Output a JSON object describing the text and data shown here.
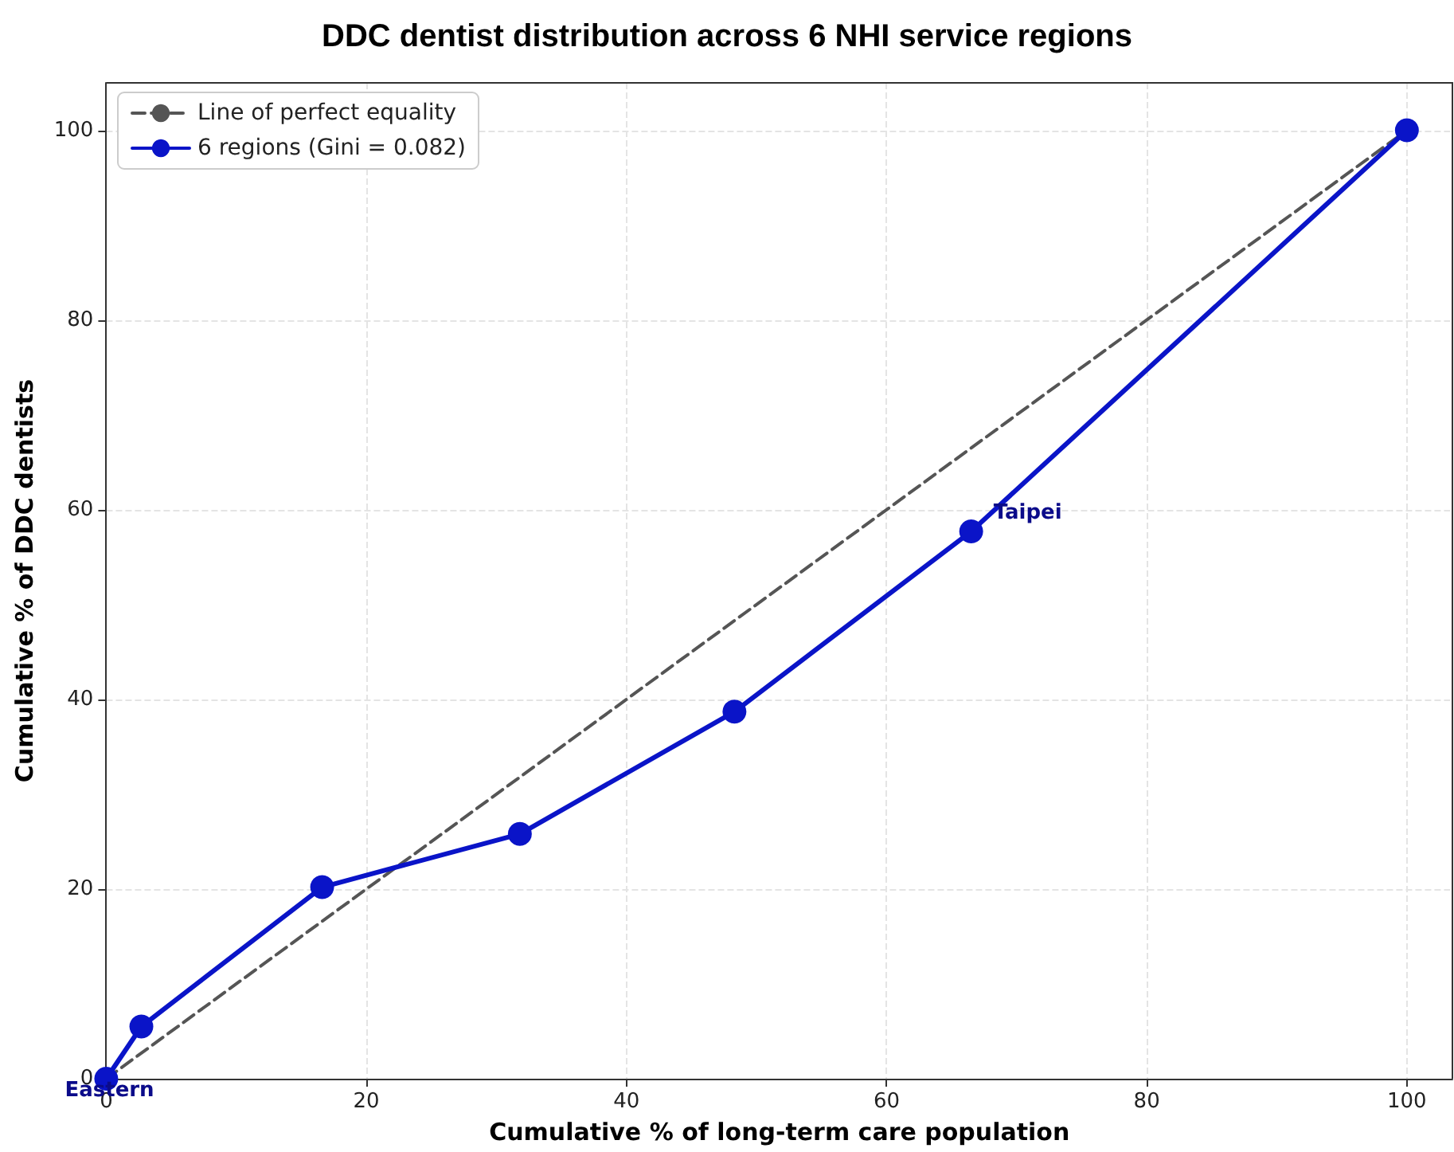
{
  "chart_data": {
    "type": "line",
    "title": "DDC dentist distribution across 6 NHI service regions",
    "xlabel": "Cumulative % of long-term care population",
    "ylabel": "Cumulative % of DDC dentists",
    "series": [
      {
        "name": "Line of perfect equality",
        "color": "#555555",
        "line_style": "dashed",
        "marker": "none",
        "x": [
          0,
          100
        ],
        "values": [
          0,
          100
        ]
      },
      {
        "name": "6 regions (Gini = 0.082)",
        "color": "#0a14c8",
        "line_style": "solid",
        "marker": "circle",
        "x": [
          0,
          2.7,
          16.6,
          31.8,
          48.3,
          66.5,
          100
        ],
        "values": [
          0,
          5.5,
          20.2,
          25.8,
          38.7,
          57.7,
          100
        ]
      }
    ],
    "annotations": [
      {
        "text": "Eastern",
        "x": 0,
        "y": 0
      },
      {
        "text": "Taipei",
        "x": 66.5,
        "y": 57.7
      }
    ],
    "xlim": [
      0,
      103.5
    ],
    "ylim": [
      0,
      105
    ],
    "xticks": [
      0,
      20,
      40,
      60,
      80,
      100
    ],
    "yticks": [
      0,
      20,
      40,
      60,
      80,
      100
    ],
    "grid": true,
    "legend": "top left"
  }
}
